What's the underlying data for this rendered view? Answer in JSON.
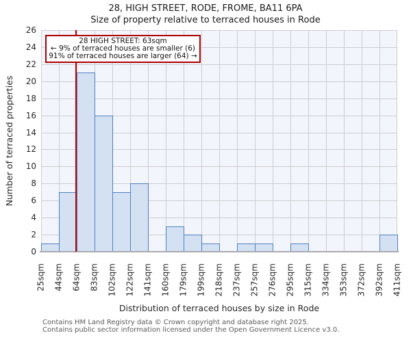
{
  "title": "28, HIGH STREET, RODE, FROME, BA11 6PA",
  "subtitle": "Size of property relative to terraced houses in Rode",
  "annotation": {
    "line1": "28 HIGH STREET: 63sqm",
    "line2": "← 9% of terraced houses are smaller (6)",
    "line3": "91% of terraced houses are larger (64) →"
  },
  "footer": {
    "line1": "Contains HM Land Registry data © Crown copyright and database right 2025.",
    "line2": "Contains public sector information licensed under the Open Government Licence v3.0."
  },
  "chart_data": {
    "type": "bar",
    "title": "28, HIGH STREET, RODE, FROME, BA11 6PA",
    "subtitle": "Size of property relative to terraced houses in Rode",
    "xlabel": "Distribution of terraced houses by size in Rode",
    "ylabel": "Number of terraced properties",
    "bin_edges_sqm": [
      25,
      44,
      64,
      83,
      102,
      122,
      141,
      160,
      179,
      199,
      218,
      237,
      257,
      276,
      295,
      315,
      334,
      353,
      372,
      392,
      411
    ],
    "x_tick_labels": [
      "25sqm",
      "44sqm",
      "64sqm",
      "83sqm",
      "102sqm",
      "122sqm",
      "141sqm",
      "160sqm",
      "179sqm",
      "199sqm",
      "218sqm",
      "237sqm",
      "257sqm",
      "276sqm",
      "295sqm",
      "315sqm",
      "334sqm",
      "353sqm",
      "372sqm",
      "392sqm",
      "411sqm"
    ],
    "values": [
      1,
      7,
      21,
      16,
      7,
      8,
      0,
      3,
      2,
      1,
      0,
      1,
      1,
      0,
      1,
      0,
      0,
      0,
      0,
      2
    ],
    "y_ticks": [
      0,
      2,
      4,
      6,
      8,
      10,
      12,
      14,
      16,
      18,
      20,
      22,
      24,
      26
    ],
    "ylim": [
      0,
      26
    ],
    "grid": true,
    "legend": "none",
    "marker_value_sqm": 63,
    "colors": {
      "bar_fill": "#d4e1f3",
      "bar_edge": "#4e7fbe",
      "marker_line": "#c00000",
      "annotation_border": "#aa0000",
      "plot_bg": "#f2f5fb",
      "grid": "#cdcdd2",
      "axis_line": "#a9a9ae"
    }
  }
}
